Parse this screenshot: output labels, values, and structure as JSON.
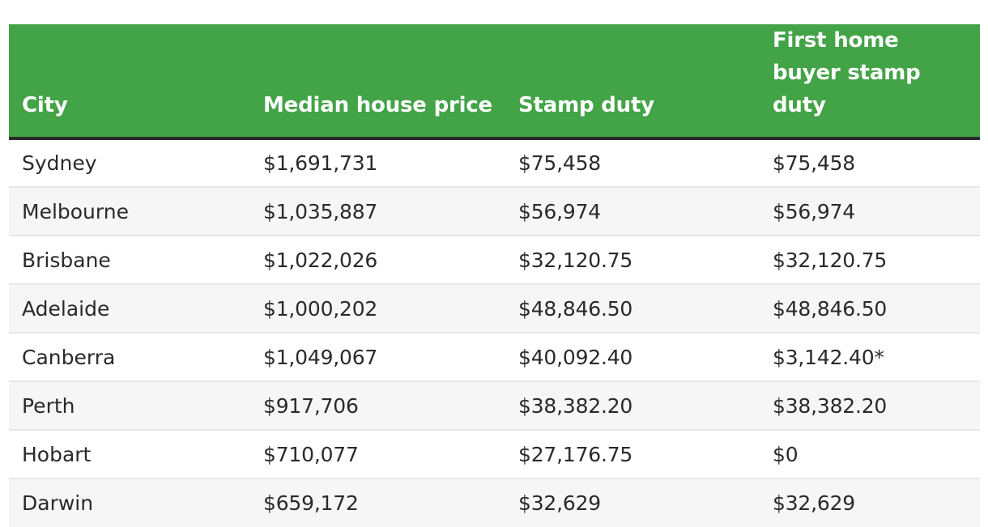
{
  "table": {
    "headers": [
      "City",
      "Median house price",
      "Stamp duty",
      "First home buyer stamp duty"
    ],
    "rows": [
      [
        "Sydney",
        "$1,691,731",
        "$75,458",
        "$75,458"
      ],
      [
        "Melbourne",
        "$1,035,887",
        "$56,974",
        "$56,974"
      ],
      [
        "Brisbane",
        "$1,022,026",
        "$32,120.75",
        "$32,120.75"
      ],
      [
        "Adelaide",
        "$1,000,202",
        "$48,846.50",
        "$48,846.50"
      ],
      [
        "Canberra",
        "$1,049,067",
        "$40,092.40",
        "$3,142.40*"
      ],
      [
        "Perth",
        "$917,706",
        "$38,382.20",
        "$38,382.20"
      ],
      [
        "Hobart",
        "$710,077",
        "$27,176.75",
        "$0"
      ],
      [
        "Darwin",
        "$659,172",
        "$32,629",
        "$32,629"
      ]
    ]
  },
  "colors": {
    "header_bg": "#43a347",
    "header_text": "#ffffff",
    "header_border": "#2b2b2b",
    "row_alt_bg": "#f6f6f6",
    "row_divider": "#e7e7e7",
    "body_text": "#2a2a2a"
  }
}
